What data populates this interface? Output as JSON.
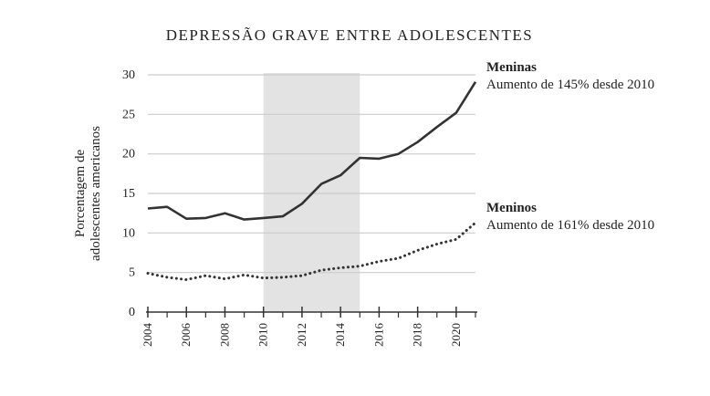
{
  "chart_data": {
    "type": "line",
    "title": "DEPRESSÃO GRAVE ENTRE ADOLESCENTES",
    "ylabel_lines": [
      "Porcentagem de",
      "adolescentes americanos"
    ],
    "xlabel": "",
    "xlim": [
      2004,
      2021
    ],
    "ylim": [
      0,
      30
    ],
    "yticks": [
      0,
      5,
      10,
      15,
      20,
      25,
      30
    ],
    "xticks": [
      2004,
      2006,
      2008,
      2010,
      2012,
      2014,
      2016,
      2018,
      2020
    ],
    "grid": "horizontal",
    "shaded_region": [
      2010,
      2015
    ],
    "colors": {
      "meninas": "#333333",
      "meninos": "#333333",
      "shade": "#e3e3e3",
      "grid": "#cccccc"
    },
    "series": [
      {
        "name": "Meninas",
        "note": "Aumento de 145% desde 2010",
        "style": "solid",
        "x": [
          2004,
          2005,
          2006,
          2007,
          2008,
          2009,
          2010,
          2011,
          2012,
          2013,
          2014,
          2015,
          2016,
          2017,
          2018,
          2019,
          2020,
          2021
        ],
        "values": [
          13.1,
          13.3,
          11.8,
          11.9,
          12.5,
          11.7,
          11.9,
          12.1,
          13.7,
          16.2,
          17.3,
          19.5,
          19.4,
          20.0,
          21.5,
          23.4,
          25.2,
          29.1
        ]
      },
      {
        "name": "Meninos",
        "note": "Aumento de 161% desde 2010",
        "style": "dotted",
        "x": [
          2004,
          2005,
          2006,
          2007,
          2008,
          2009,
          2010,
          2011,
          2012,
          2013,
          2014,
          2015,
          2016,
          2017,
          2018,
          2019,
          2020,
          2021
        ],
        "values": [
          4.9,
          4.4,
          4.1,
          4.6,
          4.2,
          4.7,
          4.3,
          4.4,
          4.6,
          5.3,
          5.6,
          5.8,
          6.4,
          6.8,
          7.8,
          8.6,
          9.2,
          11.3
        ]
      }
    ]
  }
}
